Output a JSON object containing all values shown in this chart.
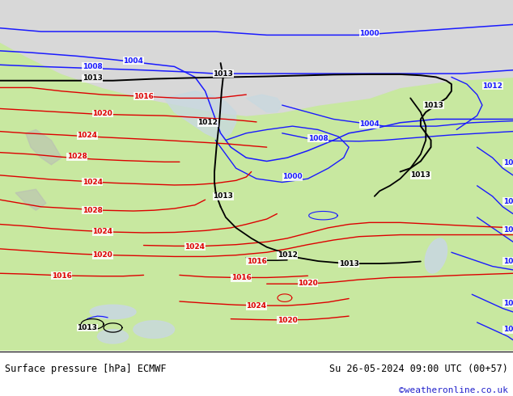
{
  "title_left": "Surface pressure [hPa] ECMWF",
  "title_right": "Su 26-05-2024 09:00 UTC (00+57)",
  "credit": "©weatheronline.co.uk",
  "land_color": "#c8e8a0",
  "arctic_color": "#d8d8d8",
  "sea_color": "#c8d8e0",
  "isobar_blue": "#1a1aff",
  "isobar_red": "#dd0000",
  "isobar_black": "#000000",
  "label_fontsize": 6.5,
  "footer_fontsize": 8.5,
  "credit_color": "#2222cc",
  "figsize": [
    6.34,
    4.9
  ],
  "dpi": 100
}
